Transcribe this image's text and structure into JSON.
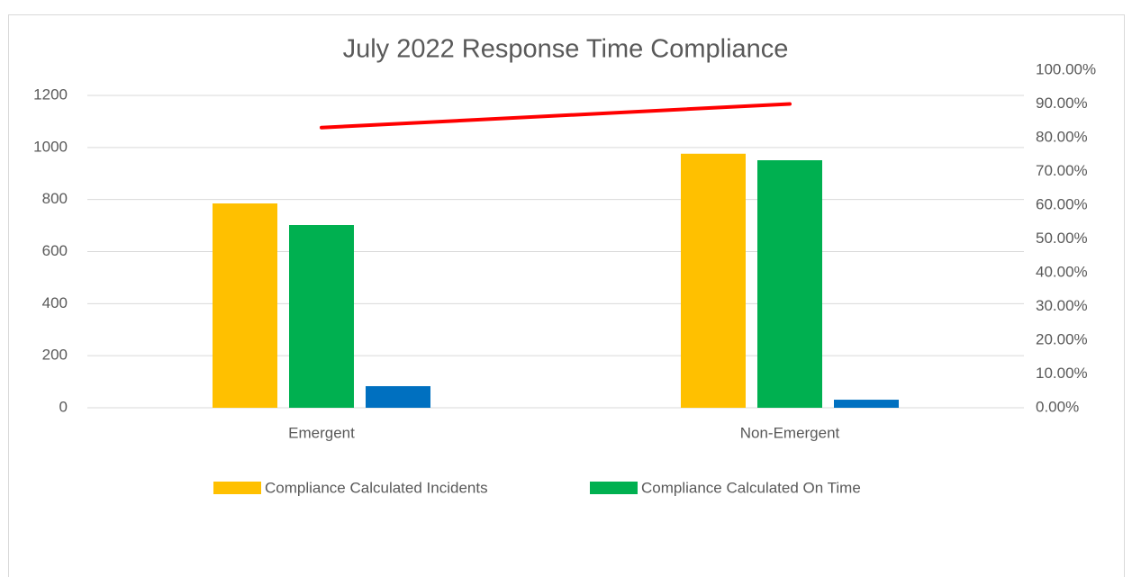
{
  "chart_data": {
    "type": "bar",
    "title": "July 2022 Response Time Compliance",
    "categories": [
      "Emergent",
      "Non-Emergent"
    ],
    "series": [
      {
        "name": "Compliance  Calculated Incidents",
        "color": "#ffc000",
        "values": [
          785,
          976
        ]
      },
      {
        "name": "Compliance Calculated On Time",
        "color": "#00b050",
        "values": [
          702,
          951
        ]
      },
      {
        "color": "#0070c0",
        "values": [
          83,
          31
        ]
      },
      {
        "type": "line",
        "axis": "y2",
        "color": "#ff0000",
        "values": [
          83,
          90
        ]
      }
    ],
    "ylim": [
      0,
      1200
    ],
    "yticks": [
      0,
      200,
      400,
      600,
      800,
      1000,
      1200
    ],
    "y2lim": [
      0,
      100
    ],
    "y2ticks": [
      {
        "value": 0,
        "label": "0.00%"
      },
      {
        "value": 10,
        "label": "10.00%"
      },
      {
        "value": 20,
        "label": "20.00%"
      },
      {
        "value": 30,
        "label": "30.00%"
      },
      {
        "value": 40,
        "label": "40.00%"
      },
      {
        "value": 50,
        "label": "50.00%"
      },
      {
        "value": 60,
        "label": "60.00%"
      },
      {
        "value": 70,
        "label": "70.00%"
      },
      {
        "value": 80,
        "label": "80.00%"
      },
      {
        "value": 90,
        "label": "90.00%"
      },
      {
        "value": 100,
        "label": "100.00%"
      }
    ],
    "grid": true,
    "legend": "bottom"
  }
}
